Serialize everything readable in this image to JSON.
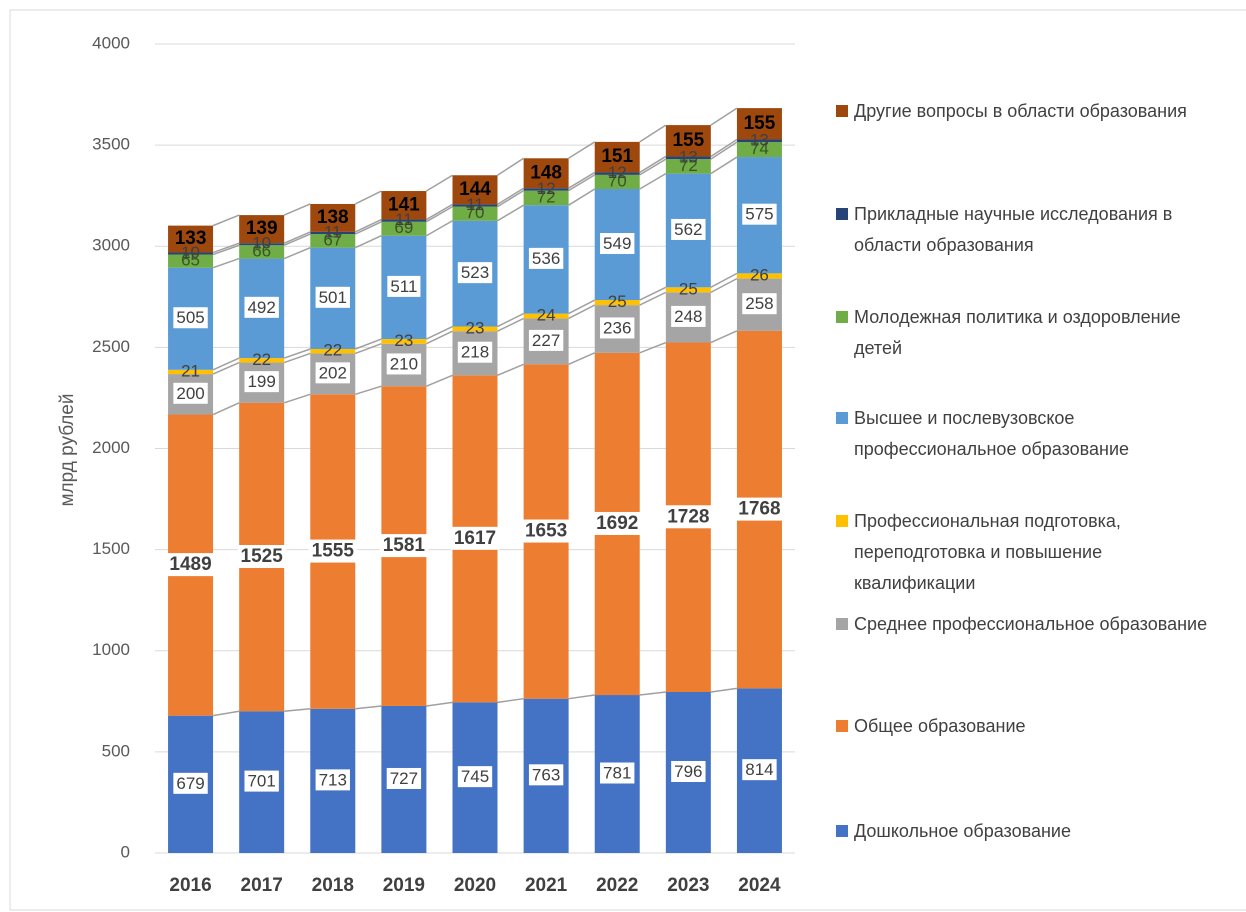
{
  "chart_data": {
    "type": "stacked_bar",
    "y_label": "млрд рублей",
    "categories": [
      "2016",
      "2017",
      "2018",
      "2019",
      "2020",
      "2021",
      "2022",
      "2023",
      "2024"
    ],
    "series": [
      {
        "name": "Дошкольное образование",
        "color": "#4472c4",
        "values": [
          679,
          701,
          713,
          727,
          745,
          763,
          781,
          796,
          814
        ]
      },
      {
        "name": "Общее образование",
        "color": "#ed7d31",
        "values": [
          1489,
          1525,
          1555,
          1581,
          1617,
          1653,
          1692,
          1728,
          1768
        ]
      },
      {
        "name": "Среднее профессиональное образование",
        "color": "#a5a5a5",
        "values": [
          200,
          199,
          202,
          210,
          218,
          227,
          236,
          248,
          258
        ]
      },
      {
        "name": "Профессиональная подготовка, переподготовка и повышение квалификации",
        "color": "#ffc000",
        "values": [
          21,
          22,
          22,
          23,
          23,
          24,
          25,
          25,
          26
        ]
      },
      {
        "name": "Высшее и послевузовское профессиональное образование",
        "color": "#5b9bd5",
        "values": [
          505,
          492,
          501,
          511,
          523,
          536,
          549,
          562,
          575
        ]
      },
      {
        "name": "Молодежная политика и оздоровление детей",
        "color": "#70ad47",
        "values": [
          65,
          66,
          67,
          69,
          70,
          72,
          70,
          72,
          74
        ]
      },
      {
        "name": "Прикладные научные исследования в области образования",
        "color": "#264478",
        "values": [
          10,
          10,
          11,
          11,
          11,
          12,
          12,
          13,
          13
        ]
      },
      {
        "name": "Другие вопросы в области образования",
        "color": "#9e480e",
        "values": [
          133,
          139,
          138,
          141,
          144,
          148,
          151,
          155,
          155
        ]
      }
    ],
    "ylim": [
      0,
      4000
    ],
    "yticks": [
      0,
      500,
      1000,
      1500,
      2000,
      2500,
      3000,
      3500,
      4000
    ],
    "grid": true,
    "legend": "right"
  }
}
